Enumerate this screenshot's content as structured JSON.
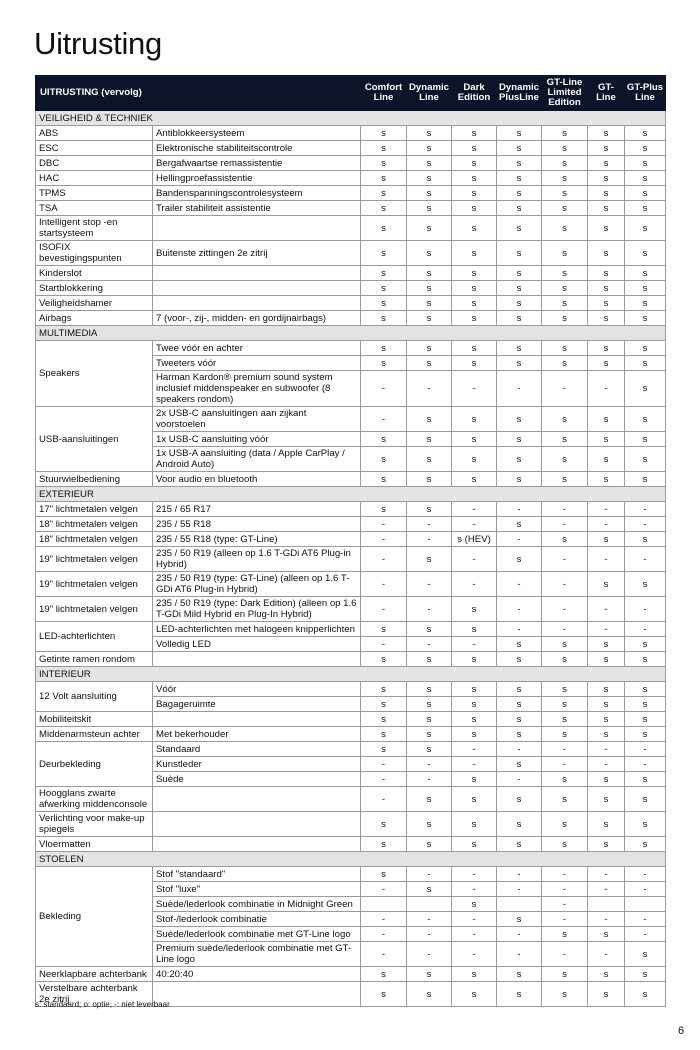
{
  "title": "Uitrusting",
  "table": {
    "header": [
      "UITRUSTING (vervolg)",
      "Comfort Line",
      "Dynamic Line",
      "Dark Edition",
      "Dynamic PlusLine",
      "GT-Line Limited Edition",
      "GT- Line",
      "GT-Plus Line"
    ],
    "sections": [
      {
        "title": "VEILIGHEID & TECHNIEK",
        "rows": [
          {
            "feature": "ABS",
            "options": [
              {
                "description": "Antiblokkeersysteem",
                "values": [
                  "s",
                  "s",
                  "s",
                  "s",
                  "s",
                  "s",
                  "s"
                ]
              }
            ]
          },
          {
            "feature": "ESC",
            "options": [
              {
                "description": "Elektronische stabiliteitscontrole",
                "values": [
                  "s",
                  "s",
                  "s",
                  "s",
                  "s",
                  "s",
                  "s"
                ]
              }
            ]
          },
          {
            "feature": "DBC",
            "options": [
              {
                "description": "Bergafwaartse remassistentie",
                "values": [
                  "s",
                  "s",
                  "s",
                  "s",
                  "s",
                  "s",
                  "s"
                ]
              }
            ]
          },
          {
            "feature": "HAC",
            "options": [
              {
                "description": "Hellingproefassistentie",
                "values": [
                  "s",
                  "s",
                  "s",
                  "s",
                  "s",
                  "s",
                  "s"
                ]
              }
            ]
          },
          {
            "feature": "TPMS",
            "options": [
              {
                "description": "Bandenspanningscontrolesysteem",
                "values": [
                  "s",
                  "s",
                  "s",
                  "s",
                  "s",
                  "s",
                  "s"
                ]
              }
            ]
          },
          {
            "feature": "TSA",
            "options": [
              {
                "description": "Trailer stabiliteit assistentie",
                "values": [
                  "s",
                  "s",
                  "s",
                  "s",
                  "s",
                  "s",
                  "s"
                ]
              }
            ]
          },
          {
            "feature": "Intelligent stop -en startsysteem",
            "options": [
              {
                "values": [
                  "s",
                  "s",
                  "s",
                  "s",
                  "s",
                  "s",
                  "s"
                ]
              }
            ]
          },
          {
            "feature": "ISOFIX bevestigingspunten",
            "options": [
              {
                "description": "Buitenste zittingen 2e zitrij",
                "values": [
                  "s",
                  "s",
                  "s",
                  "s",
                  "s",
                  "s",
                  "s"
                ]
              }
            ]
          },
          {
            "feature": "Kinderslot",
            "options": [
              {
                "values": [
                  "s",
                  "s",
                  "s",
                  "s",
                  "s",
                  "s",
                  "s"
                ]
              }
            ]
          },
          {
            "feature": "Startblokkering",
            "options": [
              {
                "values": [
                  "s",
                  "s",
                  "s",
                  "s",
                  "s",
                  "s",
                  "s"
                ]
              }
            ]
          },
          {
            "feature": "Veiligheidshamer",
            "options": [
              {
                "values": [
                  "s",
                  "s",
                  "s",
                  "s",
                  "s",
                  "s",
                  "s"
                ]
              }
            ]
          },
          {
            "feature": "Airbags",
            "options": [
              {
                "description": "7 (voor-, zij-, midden- en gordijnairbags)",
                "values": [
                  "s",
                  "s",
                  "s",
                  "s",
                  "s",
                  "s",
                  "s"
                ]
              }
            ]
          }
        ]
      },
      {
        "title": "MULTIMEDIA",
        "rows": [
          {
            "feature": "Speakers",
            "options": [
              {
                "description": "Twee vóór en achter",
                "values": [
                  "s",
                  "s",
                  "s",
                  "s",
                  "s",
                  "s",
                  "s"
                ]
              },
              {
                "description": "Tweeters vóór",
                "values": [
                  "s",
                  "s",
                  "s",
                  "s",
                  "s",
                  "s",
                  "s"
                ]
              },
              {
                "description": "Harman Kardon® premium sound system inclusief middenspeaker en subwoofer (8 speakers rondom)",
                "values": [
                  "-",
                  "-",
                  "-",
                  "-",
                  "-",
                  "-",
                  "s"
                ]
              }
            ]
          },
          {
            "feature": "USB-aansluitingen",
            "options": [
              {
                "description": "2x USB-C aansluitingen aan zijkant voorstoelen",
                "values": [
                  "-",
                  "s",
                  "s",
                  "s",
                  "s",
                  "s",
                  "s"
                ]
              },
              {
                "description": "1x USB-C aansluiting vóór",
                "values": [
                  "s",
                  "s",
                  "s",
                  "s",
                  "s",
                  "s",
                  "s"
                ]
              },
              {
                "description": "1x USB-A aansluiting (data / Apple CarPlay / Android Auto)",
                "values": [
                  "s",
                  "s",
                  "s",
                  "s",
                  "s",
                  "s",
                  "s"
                ]
              }
            ]
          },
          {
            "feature": "Stuurwielbediening",
            "options": [
              {
                "description": "Voor audio en bluetooth",
                "values": [
                  "s",
                  "s",
                  "s",
                  "s",
                  "s",
                  "s",
                  "s"
                ]
              }
            ]
          }
        ]
      },
      {
        "title": "EXTERIEUR",
        "rows": [
          {
            "feature": "17\" lichtmetalen velgen",
            "options": [
              {
                "description": "215 / 65 R17",
                "values": [
                  "s",
                  "s",
                  "-",
                  "-",
                  "-",
                  "-",
                  "-"
                ]
              }
            ]
          },
          {
            "feature": "18\" lichtmetalen velgen",
            "options": [
              {
                "description": "235 / 55 R18",
                "values": [
                  "-",
                  "-",
                  "-",
                  "s",
                  "-",
                  "-",
                  "-"
                ]
              }
            ]
          },
          {
            "feature": "18\" lichtmetalen velgen",
            "options": [
              {
                "description": "235 / 55 R18 (type: GT-Line)",
                "values": [
                  "-",
                  "-",
                  "s (HEV)",
                  "-",
                  "s",
                  "s",
                  "s"
                ]
              }
            ]
          },
          {
            "feature": "19\" lichtmetalen velgen",
            "options": [
              {
                "description": "235 / 50 R19 (alleen op 1.6 T-GDi AT6 Plug-in Hybrid)",
                "values": [
                  "-",
                  "s",
                  "-",
                  "s",
                  "-",
                  "-",
                  "-"
                ]
              }
            ]
          },
          {
            "feature": "19\" lichtmetalen velgen",
            "options": [
              {
                "description": "235 / 50 R19 (type: GT-Line) (alleen op 1.6 T-GDi AT6 Plug-in Hybrid)",
                "values": [
                  "-",
                  "-",
                  "-",
                  "-",
                  "-",
                  "s",
                  "s"
                ]
              }
            ]
          },
          {
            "feature": "19\" lichtmetalen velgen",
            "options": [
              {
                "description": "235 / 50 R19 (type: Dark Edition) (alleen op 1.6 T-GDi Mild Hybrid en Plug-In Hybrid)",
                "values": [
                  "-",
                  "-",
                  "s",
                  "-",
                  "-",
                  "-",
                  "-"
                ]
              }
            ]
          },
          {
            "feature": "LED-achterlichten",
            "options": [
              {
                "description": "LED-achterlichten met halogeen knipperlichten",
                "values": [
                  "s",
                  "s",
                  "s",
                  "-",
                  "-",
                  "-",
                  "-"
                ]
              },
              {
                "description": "Volledig LED",
                "values": [
                  "-",
                  "-",
                  "-",
                  "s",
                  "s",
                  "s",
                  "s"
                ]
              }
            ]
          },
          {
            "feature": "Getinte ramen rondom",
            "options": [
              {
                "values": [
                  "s",
                  "s",
                  "s",
                  "s",
                  "s",
                  "s",
                  "s"
                ]
              }
            ]
          }
        ]
      },
      {
        "title": "INTERIEUR",
        "rows": [
          {
            "feature": "12 Volt aansluiting",
            "options": [
              {
                "description": "Vóór",
                "values": [
                  "s",
                  "s",
                  "s",
                  "s",
                  "s",
                  "s",
                  "s"
                ]
              },
              {
                "description": "Bagageruimte",
                "values": [
                  "s",
                  "s",
                  "s",
                  "s",
                  "s",
                  "s",
                  "s"
                ]
              }
            ]
          },
          {
            "feature": "Mobiliteitskit",
            "options": [
              {
                "values": [
                  "s",
                  "s",
                  "s",
                  "s",
                  "s",
                  "s",
                  "s"
                ]
              }
            ]
          },
          {
            "feature": "Middenarmsteun achter",
            "options": [
              {
                "description": "Met bekerhouder",
                "values": [
                  "s",
                  "s",
                  "s",
                  "s",
                  "s",
                  "s",
                  "s"
                ]
              }
            ]
          },
          {
            "feature": "Deurbekleding",
            "options": [
              {
                "description": "Standaard",
                "values": [
                  "s",
                  "s",
                  "-",
                  "-",
                  "-",
                  "-",
                  "-"
                ]
              },
              {
                "description": "Kunstleder",
                "values": [
                  "-",
                  "-",
                  "-",
                  "s",
                  "-",
                  "-",
                  "-"
                ]
              },
              {
                "description": "Suède",
                "values": [
                  "-",
                  "-",
                  "s",
                  "-",
                  "s",
                  "s",
                  "s"
                ]
              }
            ]
          },
          {
            "feature": "Hoogglans zwarte afwerking middenconsole",
            "options": [
              {
                "values": [
                  "-",
                  "s",
                  "s",
                  "s",
                  "s",
                  "s",
                  "s"
                ]
              }
            ]
          },
          {
            "feature": "Verlichting voor make-up spiegels",
            "options": [
              {
                "values": [
                  "s",
                  "s",
                  "s",
                  "s",
                  "s",
                  "s",
                  "s"
                ]
              }
            ]
          },
          {
            "feature": "Vloermatten",
            "options": [
              {
                "values": [
                  "s",
                  "s",
                  "s",
                  "s",
                  "s",
                  "s",
                  "s"
                ]
              }
            ]
          }
        ]
      },
      {
        "title": "STOELEN",
        "rows": [
          {
            "feature": "Bekleding",
            "options": [
              {
                "description": "Stof \"standaard\"",
                "values": [
                  "s",
                  "-",
                  "-",
                  "-",
                  "-",
                  "-",
                  "-"
                ]
              },
              {
                "description": "Stof \"luxe\"",
                "values": [
                  "-",
                  "s",
                  "-",
                  "-",
                  "-",
                  "-",
                  "-"
                ]
              },
              {
                "description": "Suède/lederlook combinatie in Midnight Green",
                "values": [
                  null,
                  null,
                  "s",
                  null,
                  "-",
                  null,
                  null
                ]
              },
              {
                "description": "Stof-/lederlook combinatie",
                "values": [
                  "-",
                  "-",
                  "-",
                  "s",
                  "-",
                  "-",
                  "-"
                ]
              },
              {
                "description": "Suède/lederlook combinatie met GT-Line logo",
                "values": [
                  "-",
                  "-",
                  "-",
                  "-",
                  "s",
                  "s",
                  "-"
                ]
              },
              {
                "description": "Premium suède/lederlook combinatie met GT-Line logo",
                "values": [
                  "-",
                  "-",
                  "-",
                  "-",
                  "-",
                  "-",
                  "s"
                ]
              }
            ]
          },
          {
            "feature": "Neerklapbare achterbank",
            "options": [
              {
                "description": "40:20:40",
                "values": [
                  "s",
                  "s",
                  "s",
                  "s",
                  "s",
                  "s",
                  "s"
                ]
              }
            ]
          },
          {
            "feature": "Verstelbare achterbank 2e zitrij",
            "options": [
              {
                "values": [
                  "s",
                  "s",
                  "s",
                  "s",
                  "s",
                  "s",
                  "s"
                ]
              }
            ]
          }
        ]
      }
    ]
  },
  "footnote": "s: standaard; o: optie; -: niet leverbaar",
  "page_number": "6"
}
